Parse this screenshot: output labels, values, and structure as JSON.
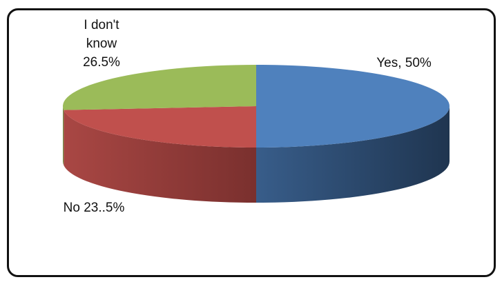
{
  "chart_data": {
    "type": "pie",
    "title": "",
    "style": "3d",
    "legend": "none",
    "start_angle": "90deg",
    "slices": [
      {
        "category": "Yes",
        "value": 50,
        "label_lines": [
          "Yes, 50%"
        ],
        "color": "#4f81bd",
        "side_color": "#385d8a",
        "label_position": "top-right"
      },
      {
        "category": "No",
        "value": 23.5,
        "label_lines": [
          "No 23..5%"
        ],
        "color": "#c0504d",
        "side_color": "#8c3936",
        "label_position": "bottom-left"
      },
      {
        "category": "I don't know",
        "value": 26.5,
        "label_lines": [
          "I don't",
          "know",
          "26.5%"
        ],
        "color": "#9bbb59",
        "side_color": "#71893f",
        "label_position": "top-left"
      }
    ]
  }
}
